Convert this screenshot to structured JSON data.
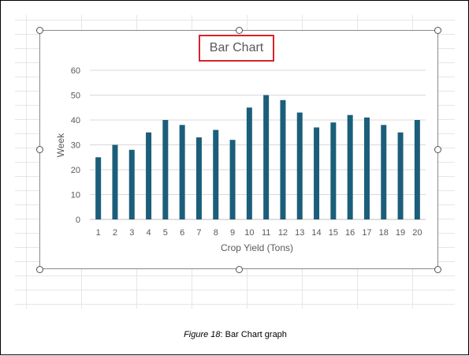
{
  "caption": {
    "label": "Figure 18",
    "text": ": Bar Chart graph"
  },
  "chart_data": {
    "type": "bar",
    "title": "Bar Chart",
    "xlabel": "Crop Yield (Tons)",
    "ylabel": "Week",
    "categories": [
      "1",
      "2",
      "3",
      "4",
      "5",
      "6",
      "7",
      "8",
      "9",
      "10",
      "11",
      "12",
      "13",
      "14",
      "15",
      "16",
      "17",
      "18",
      "19",
      "20"
    ],
    "values": [
      25,
      30,
      28,
      35,
      40,
      38,
      33,
      36,
      32,
      45,
      50,
      48,
      43,
      37,
      39,
      42,
      41,
      38,
      35,
      40
    ],
    "ylim": [
      0,
      60
    ],
    "yticks": [
      0,
      10,
      20,
      30,
      40,
      50,
      60
    ],
    "grid": true,
    "legend": "none",
    "bar_color": "#1b5e7a"
  },
  "colors": {
    "bar": "#1b5e7a",
    "title_highlight": "#d9232a"
  }
}
